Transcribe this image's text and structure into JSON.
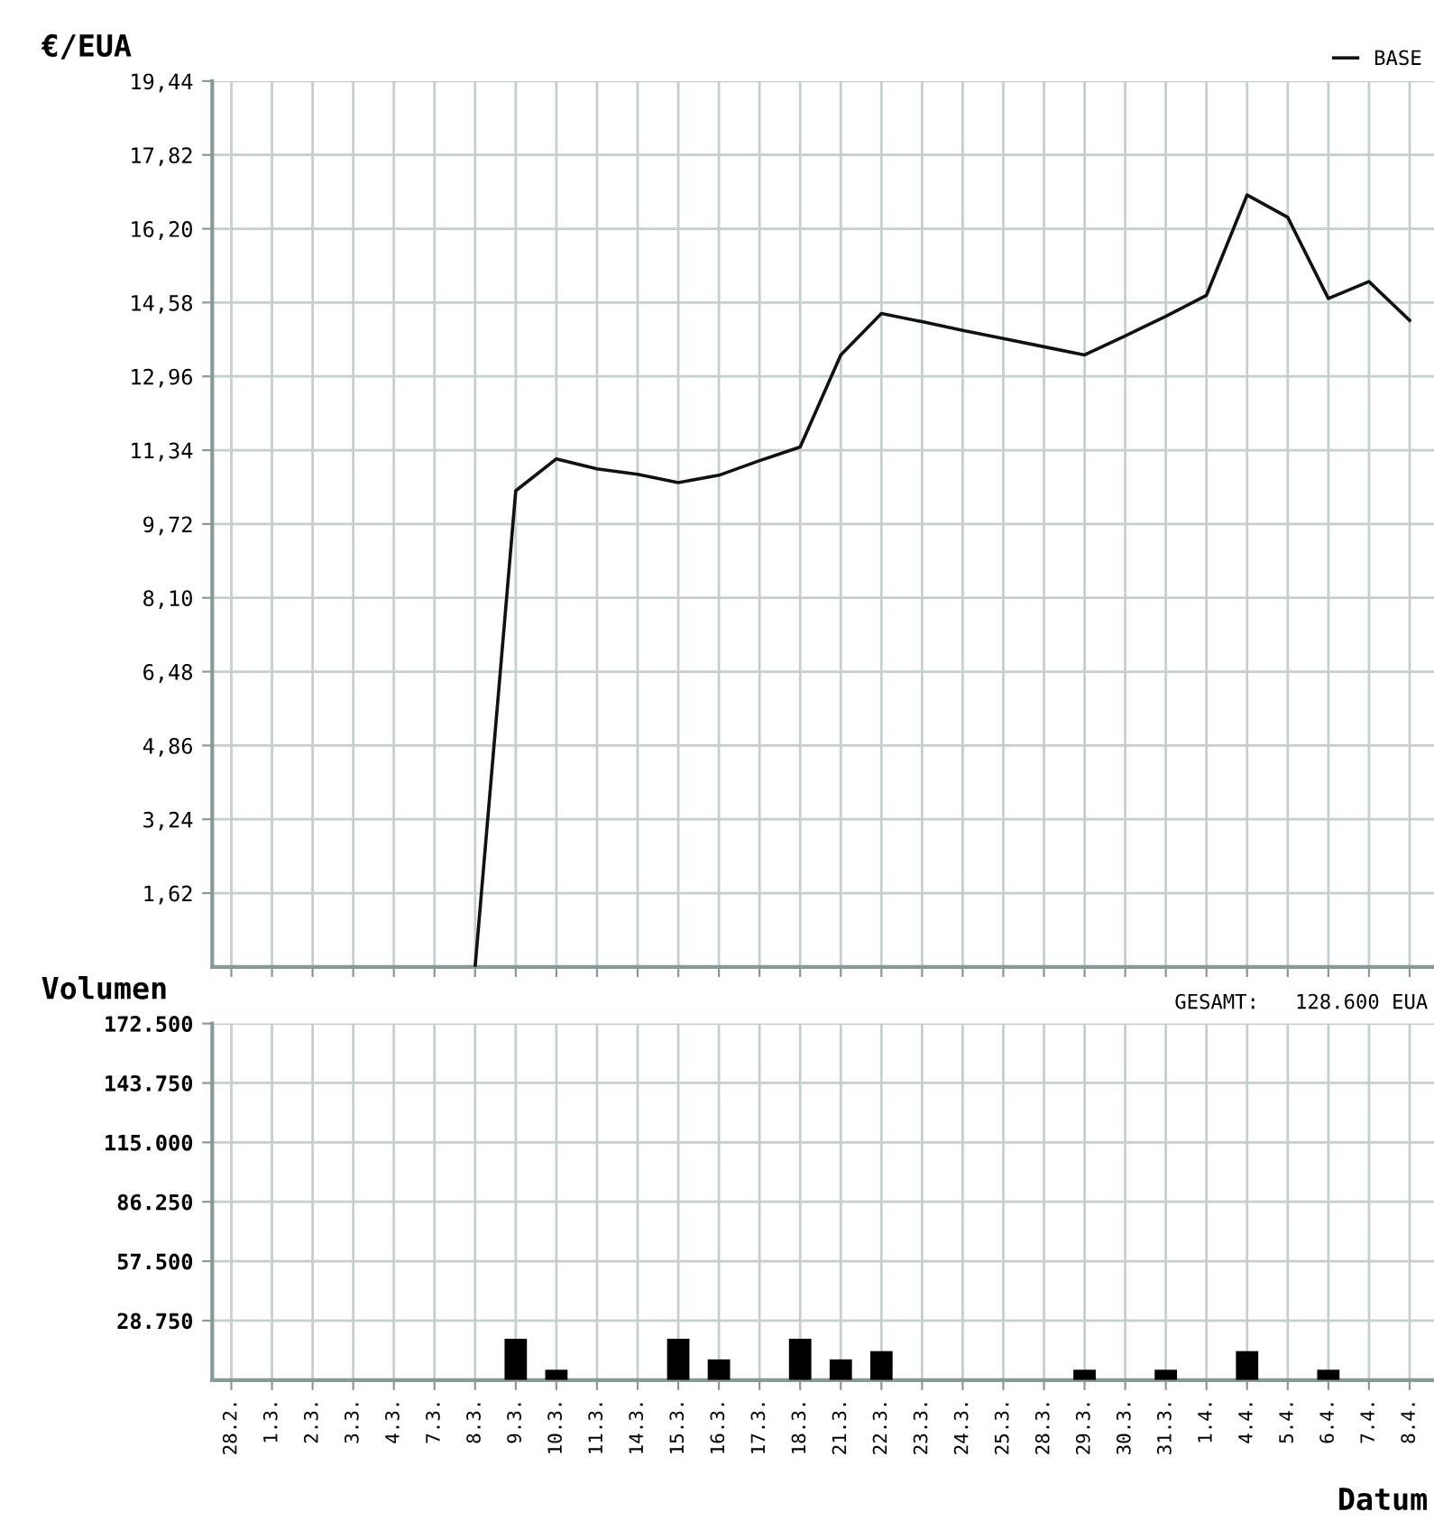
{
  "chart_data": [
    {
      "type": "line",
      "ylabel": "€/EUA",
      "categories": [
        "28.2.",
        "1.3.",
        "2.3.",
        "3.3.",
        "4.3.",
        "7.3.",
        "8.3.",
        "9.3.",
        "10.3.",
        "11.3.",
        "14.3.",
        "15.3.",
        "16.3.",
        "17.3.",
        "18.3.",
        "21.3.",
        "22.3.",
        "23.3.",
        "24.3.",
        "25.3.",
        "28.3.",
        "29.3.",
        "30.3.",
        "31.3.",
        "1.4.",
        "4.4.",
        "5.4.",
        "6.4.",
        "7.4.",
        "8.4."
      ],
      "series": [
        {
          "name": "BASE",
          "color": "#111111",
          "values": [
            null,
            null,
            null,
            null,
            null,
            null,
            0,
            10.45,
            11.15,
            10.93,
            10.81,
            10.63,
            10.79,
            11.11,
            11.41,
            13.43,
            14.34,
            14.16,
            13.97,
            13.79,
            13.61,
            13.43,
            13.85,
            14.28,
            14.74,
            16.94,
            16.45,
            14.67,
            15.04,
            14.19
          ]
        }
      ],
      "ylim": [
        0,
        19.44
      ],
      "yticks": [
        {
          "value": 1.62,
          "label": "1,62"
        },
        {
          "value": 3.24,
          "label": "3,24"
        },
        {
          "value": 4.86,
          "label": "4,86"
        },
        {
          "value": 6.48,
          "label": "6,48"
        },
        {
          "value": 8.1,
          "label": "8,10"
        },
        {
          "value": 9.72,
          "label": "9,72"
        },
        {
          "value": 11.34,
          "label": "11,34"
        },
        {
          "value": 12.96,
          "label": "12,96"
        },
        {
          "value": 14.58,
          "label": "14,58"
        },
        {
          "value": 16.2,
          "label": "16,20"
        },
        {
          "value": 17.82,
          "label": "17,82"
        },
        {
          "value": 19.44,
          "label": "19,44"
        }
      ],
      "grid": true,
      "legend": "top right",
      "tick_labels": "y"
    },
    {
      "type": "bar",
      "ylabel": "Volumen",
      "xlabel": "Datum",
      "annotations": [
        "GESAMT:   128.600 EUA"
      ],
      "categories": [
        "28.2.",
        "1.3.",
        "2.3.",
        "3.3.",
        "4.3.",
        "7.3.",
        "8.3.",
        "9.3.",
        "10.3.",
        "11.3.",
        "14.3.",
        "15.3.",
        "16.3.",
        "17.3.",
        "18.3.",
        "21.3.",
        "22.3.",
        "23.3.",
        "24.3.",
        "25.3.",
        "28.3.",
        "29.3.",
        "30.3.",
        "31.3.",
        "1.4.",
        "4.4.",
        "5.4.",
        "6.4.",
        "7.4.",
        "8.4."
      ],
      "series": [
        {
          "color": "#000000",
          "values": [
            0,
            0,
            0,
            0,
            0,
            0,
            0,
            20000,
            5000,
            0,
            0,
            20000,
            10000,
            0,
            20000,
            10000,
            14000,
            0,
            0,
            0,
            0,
            5000,
            0,
            5000,
            0,
            14000,
            0,
            5000,
            0,
            0
          ]
        }
      ],
      "ylim": [
        0,
        172500
      ],
      "yticks": [
        {
          "value": 28750,
          "label": "28.750"
        },
        {
          "value": 57500,
          "label": "57.500"
        },
        {
          "value": 86250,
          "label": "86.250"
        },
        {
          "value": 115000,
          "label": "115.000"
        },
        {
          "value": 143750,
          "label": "143.750"
        },
        {
          "value": 172500,
          "label": "172.500"
        }
      ],
      "grid": true
    }
  ]
}
